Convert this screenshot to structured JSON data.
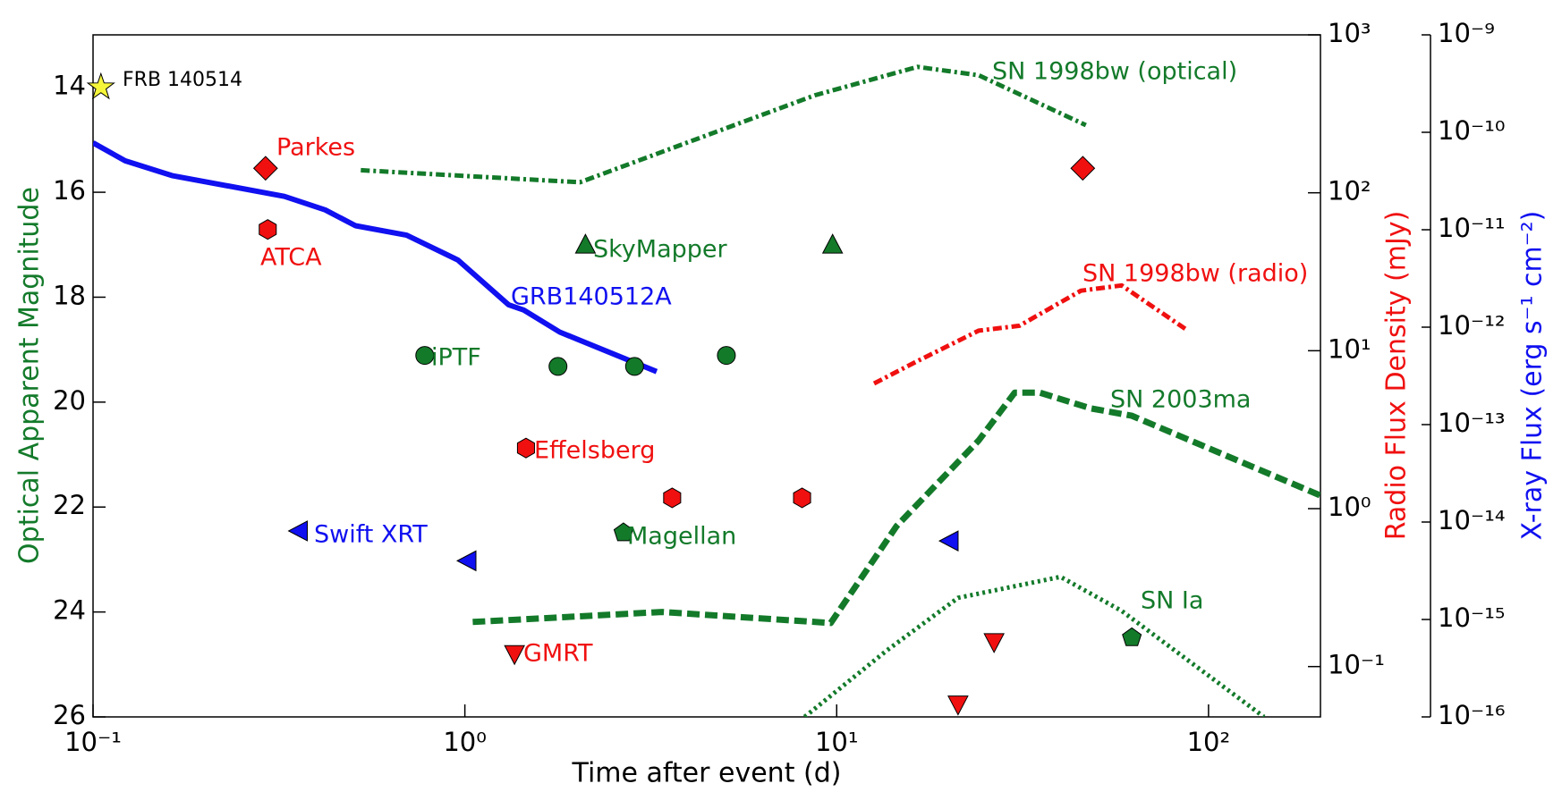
{
  "chart_data": {
    "type": "line",
    "xlabel": "Time after event (d)",
    "ylabel": "Optical Apparent Magnitude",
    "y2label": "Radio Flux Density (mJy)",
    "y3label": "X-ray Flux (erg s⁻¹ cm⁻²)",
    "xlog": true,
    "xlim": [
      0.1,
      200
    ],
    "xticks": [
      {
        "value": 0.1,
        "label": "10⁻¹"
      },
      {
        "value": 1,
        "label": "10⁰"
      },
      {
        "value": 10,
        "label": "10¹"
      },
      {
        "value": 100,
        "label": "10²"
      }
    ],
    "ylim": [
      26,
      13
    ],
    "yticks": [
      14,
      16,
      18,
      20,
      22,
      24,
      26
    ],
    "y2lim": [
      0.048,
      1000
    ],
    "y2log": true,
    "y2ticks": [
      {
        "value": 0.1,
        "label": "10⁻¹"
      },
      {
        "value": 1,
        "label": "10⁰"
      },
      {
        "value": 10,
        "label": "10¹"
      },
      {
        "value": 100,
        "label": "10²"
      },
      {
        "value": 1000,
        "label": "10³"
      }
    ],
    "y3lim": [
      1e-16,
      1e-09
    ],
    "y3log": true,
    "y3ticks": [
      {
        "value": 1e-16,
        "label": "10⁻¹⁶"
      },
      {
        "value": 1e-15,
        "label": "10⁻¹⁵"
      },
      {
        "value": 1e-14,
        "label": "10⁻¹⁴"
      },
      {
        "value": 1e-13,
        "label": "10⁻¹³"
      },
      {
        "value": 1e-12,
        "label": "10⁻¹²"
      },
      {
        "value": 1e-11,
        "label": "10⁻¹¹"
      },
      {
        "value": 1e-10,
        "label": "10⁻¹⁰"
      },
      {
        "value": 1e-09,
        "label": "10⁻⁹"
      }
    ],
    "series": [
      {
        "name": "GRB140512A",
        "color": "#1010f0",
        "axis": "y3",
        "style": "solid",
        "x": [
          0.1,
          0.122,
          0.163,
          0.327,
          0.421,
          0.508,
          0.697,
          0.957,
          1.31,
          1.44,
          1.8,
          3.28
        ],
        "values": [
          7.8e-11,
          5.1e-11,
          3.6e-11,
          2.2e-11,
          1.6e-11,
          1.1e-11,
          8.8e-12,
          4.9e-12,
          1.7e-12,
          1.5e-12,
          8.9e-13,
          3.5e-13
        ]
      },
      {
        "name": "Swift XRT",
        "color": "#1010f0",
        "axis": "y3",
        "marker": "tri-left",
        "x": [
          0.359,
          1.02,
          20.2
        ],
        "values": [
          8.1e-15,
          4e-15,
          6.4e-15
        ]
      },
      {
        "name": "Parkes",
        "color": "#f01010",
        "axis": "y2",
        "marker": "diamond",
        "x": [
          0.291,
          45.9
        ],
        "values": [
          143,
          143
        ]
      },
      {
        "name": "ATCA",
        "color": "#f01010",
        "axis": "y2",
        "marker": "hexagon",
        "x": [
          0.295
        ],
        "values": [
          58.6
        ]
      },
      {
        "name": "Effelsberg",
        "color": "#f01010",
        "axis": "y2",
        "marker": "hexagon",
        "x": [
          1.46,
          3.61,
          8.07
        ],
        "values": [
          2.42,
          1.17,
          1.17
        ]
      },
      {
        "name": "GMRT",
        "color": "#f01010",
        "axis": "y2",
        "marker": "tri-down",
        "x": [
          1.36,
          26.5,
          21.2
        ],
        "values": [
          0.121,
          0.144,
          0.058
        ]
      },
      {
        "name": "SN 1998bw (radio)",
        "color": "#f01010",
        "axis": "y2",
        "style": "dashdot",
        "x": [
          12.6,
          16.5,
          24.1,
          31.0,
          45.4,
          58.4,
          88
        ],
        "values": [
          6.2,
          8.6,
          13.4,
          14.4,
          24,
          25.9,
          13.4
        ]
      },
      {
        "name": "iPTF",
        "color": "#137a2a",
        "axis": "y",
        "marker": "circle",
        "x": [
          0.78,
          1.78,
          2.86,
          5.05
        ],
        "values": [
          19.11,
          19.32,
          19.32,
          19.11
        ]
      },
      {
        "name": "SkyMapper",
        "color": "#137a2a",
        "axis": "y",
        "marker": "tri-up",
        "x": [
          2.11,
          9.75
        ],
        "values": [
          17.01,
          17.01
        ]
      },
      {
        "name": "Magellan",
        "color": "#137a2a",
        "axis": "y",
        "marker": "pentagon",
        "x": [
          2.67,
          62.2
        ],
        "values": [
          22.49,
          24.49
        ]
      },
      {
        "name": "SN 1998bw (optical)",
        "color": "#137a2a",
        "axis": "y",
        "style": "dashdot",
        "x": [
          0.525,
          2.04,
          8.75,
          16.5,
          24.1,
          46.8
        ],
        "values": [
          15.58,
          15.81,
          14.15,
          13.61,
          13.77,
          14.72
        ]
      },
      {
        "name": "SN 2003ma",
        "color": "#137a2a",
        "axis": "y",
        "style": "dashed",
        "x": [
          1.05,
          3.39,
          9.64,
          14.5,
          24.1,
          30.1,
          35.2,
          48.3,
          62.2,
          200
        ],
        "values": [
          24.19,
          24.0,
          24.21,
          22.36,
          20.73,
          19.82,
          19.82,
          20.12,
          20.26,
          21.78
        ]
      },
      {
        "name": "SN Ia",
        "color": "#137a2a",
        "axis": "y",
        "style": "dotted",
        "x": [
          8.2,
          13.6,
          21.2,
          40,
          58.4,
          141
        ],
        "values": [
          26,
          24.74,
          23.73,
          23.33,
          23.98,
          26
        ]
      },
      {
        "name": "FRB 140514",
        "color": "#f5f53a",
        "axis": "y",
        "marker": "star",
        "x": [
          0.105
        ],
        "values": [
          14
        ]
      }
    ]
  }
}
